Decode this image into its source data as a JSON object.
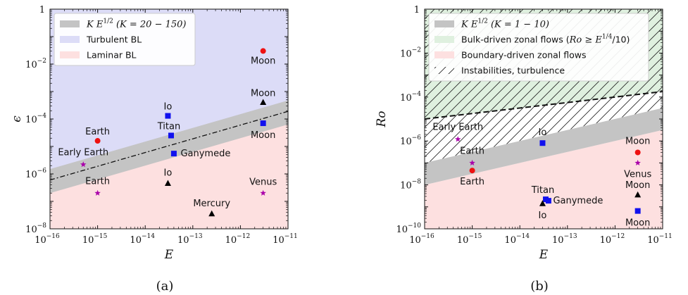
{
  "chart_data": [
    {
      "type": "scatter",
      "panel": "a",
      "caption": "(a)",
      "xlabel": "E",
      "ylabel": "ϵ",
      "x_scale": "log",
      "y_scale": "log",
      "xlim": [
        1e-16,
        1e-11
      ],
      "ylim": [
        1e-08,
        1
      ],
      "x_ticks": [
        {
          "b": "10",
          "e": "−16"
        },
        {
          "b": "10",
          "e": "−15"
        },
        {
          "b": "10",
          "e": "−14"
        },
        {
          "b": "10",
          "e": "−13"
        },
        {
          "b": "10",
          "e": "−12"
        },
        {
          "b": "10",
          "e": "−11"
        }
      ],
      "y_ticks": [
        {
          "b": "10",
          "e": "−8",
          "v": 1e-08
        },
        {
          "b": "10",
          "e": "−6",
          "v": 1e-06
        },
        {
          "b": "10",
          "e": "−4",
          "v": 0.0001
        },
        {
          "b": "10",
          "e": "−2",
          "v": 0.01
        },
        {
          "b": "1",
          "e": "",
          "v": 1
        }
      ],
      "legend_position": "top-left",
      "legend": [
        {
          "kind": "gray",
          "math": "K E",
          "sup": "1/2",
          "rest": " (K = 20 − 150)"
        },
        {
          "kind": "blue",
          "text": "Turbulent BL"
        },
        {
          "kind": "pink",
          "text": "Laminar BL"
        }
      ],
      "band": {
        "k_low": 20,
        "k_high": 150,
        "exponent": 0.5
      },
      "regions": {
        "upper_color": "#dcdcf7",
        "lower_color": "#fde0e0"
      },
      "dash_dot_line": {
        "k": 60,
        "exponent": 0.5
      },
      "points": [
        {
          "label": "Moon",
          "x": 3e-12,
          "y": 0.03,
          "marker": "circle",
          "color": "#ee1111",
          "lx": 0,
          "ly": 18
        },
        {
          "label": "Moon",
          "x": 3e-12,
          "y": 0.0004,
          "marker": "triangle",
          "color": "#000000",
          "lx": 0,
          "ly": -9
        },
        {
          "label": "Moon",
          "x": 3e-12,
          "y": 7e-05,
          "marker": "square",
          "color": "#1111ee",
          "lx": 0,
          "ly": 21
        },
        {
          "label": "Io",
          "x": 3e-14,
          "y": 0.00013,
          "marker": "square",
          "color": "#1111ee",
          "lx": 0,
          "ly": -9
        },
        {
          "label": "Titan",
          "x": 3.5e-14,
          "y": 2.5e-05,
          "marker": "square",
          "color": "#1111ee",
          "lx": -3,
          "ly": -9
        },
        {
          "label": "Ganymede",
          "x": 4e-14,
          "y": 5.5e-06,
          "marker": "square",
          "color": "#1111ee",
          "lx": 45,
          "ly": 4
        },
        {
          "label": "Earth",
          "x": 1e-15,
          "y": 1.6e-05,
          "marker": "circle",
          "color": "#ee1111",
          "lx": 0,
          "ly": -9
        },
        {
          "label": "Early Earth",
          "x": 5e-16,
          "y": 2.2e-06,
          "marker": "star",
          "color": "#aa00aa",
          "lx": 0,
          "ly": -13
        },
        {
          "label": "Earth",
          "x": 1e-15,
          "y": 2e-07,
          "marker": "star",
          "color": "#aa00aa",
          "lx": 0,
          "ly": -13
        },
        {
          "label": "Io",
          "x": 3e-14,
          "y": 4.5e-07,
          "marker": "triangle",
          "color": "#000000",
          "lx": 0,
          "ly": -11
        },
        {
          "label": "Venus",
          "x": 3e-12,
          "y": 2e-07,
          "marker": "star",
          "color": "#aa00aa",
          "lx": 0,
          "ly": -12
        },
        {
          "label": "Mercury",
          "x": 2.5e-13,
          "y": 3.5e-08,
          "marker": "triangle",
          "color": "#000000",
          "lx": 0,
          "ly": -11
        }
      ]
    },
    {
      "type": "scatter",
      "panel": "b",
      "caption": "(b)",
      "xlabel": "E",
      "ylabel": "Ro",
      "x_scale": "log",
      "y_scale": "log",
      "xlim": [
        1e-16,
        1e-11
      ],
      "ylim": [
        1e-10,
        1
      ],
      "x_ticks": [
        {
          "b": "10",
          "e": "−16"
        },
        {
          "b": "10",
          "e": "−15"
        },
        {
          "b": "10",
          "e": "−14"
        },
        {
          "b": "10",
          "e": "−13"
        },
        {
          "b": "10",
          "e": "−12"
        },
        {
          "b": "10",
          "e": "−11"
        }
      ],
      "y_ticks": [
        {
          "b": "10",
          "e": "−10",
          "v": 1e-10
        },
        {
          "b": "10",
          "e": "−8",
          "v": 1e-08
        },
        {
          "b": "10",
          "e": "−6",
          "v": 1e-06
        },
        {
          "b": "10",
          "e": "−4",
          "v": 0.0001
        },
        {
          "b": "10",
          "e": "−2",
          "v": 0.01
        },
        {
          "b": "1",
          "e": "",
          "v": 1
        }
      ],
      "legend_position": "top-left",
      "legend": [
        {
          "kind": "gray",
          "math": "K E",
          "sup": "1/2",
          "rest": " (K = 1 − 10)"
        },
        {
          "kind": "green",
          "text": "Bulk-driven zonal flows (",
          "math2": "Ro ≥ E",
          "sup2": "1/4",
          "rest2": "/10)"
        },
        {
          "kind": "pink",
          "text": "Boundary-driven zonal flows"
        },
        {
          "kind": "hatch",
          "text": "Instabilities, turbulence"
        }
      ],
      "band": {
        "k_low": 1,
        "k_high": 10,
        "exponent": 0.5
      },
      "dashed_line": {
        "k": 0.1,
        "exponent": 0.25
      },
      "regions": {
        "upper_color": "#dff0df",
        "lower_color": "#fde0e0"
      },
      "points": [
        {
          "label": "Early Earth",
          "x": 5e-16,
          "y": 1.2e-06,
          "marker": "star",
          "color": "#aa00aa",
          "lx": 0,
          "ly": -13
        },
        {
          "label": "Earth",
          "x": 1e-15,
          "y": 1e-07,
          "marker": "star",
          "color": "#aa00aa",
          "lx": 0,
          "ly": -13
        },
        {
          "label": "Earth",
          "x": 1e-15,
          "y": 4.5e-08,
          "marker": "circle",
          "color": "#ee1111",
          "lx": 0,
          "ly": 20
        },
        {
          "label": "Io",
          "x": 3e-14,
          "y": 8e-07,
          "marker": "square",
          "color": "#1111ee",
          "lx": 0,
          "ly": -11
        },
        {
          "label": "Titan",
          "x": 3.5e-14,
          "y": 2.2e-09,
          "marker": "square",
          "color": "#1111ee",
          "lx": -4,
          "ly": -9
        },
        {
          "label": "Ganymede",
          "x": 4e-14,
          "y": 1.9e-09,
          "marker": "square",
          "color": "#1111ee",
          "lx": 42,
          "ly": 4
        },
        {
          "label": "Io",
          "x": 3e-14,
          "y": 1.4e-09,
          "marker": "triangle",
          "color": "#000000",
          "lx": 0,
          "ly": 21
        },
        {
          "label": "Moon",
          "x": 3e-12,
          "y": 3e-07,
          "marker": "circle",
          "color": "#ee1111",
          "lx": 0,
          "ly": -12
        },
        {
          "label": "Venus",
          "x": 3e-12,
          "y": 1e-07,
          "marker": "star",
          "color": "#aa00aa",
          "lx": 0,
          "ly": 20
        },
        {
          "label": "Moon",
          "x": 3e-12,
          "y": 3.5e-09,
          "marker": "triangle",
          "color": "#000000",
          "lx": 0,
          "ly": -10
        },
        {
          "label": "Moon",
          "x": 3e-12,
          "y": 6.5e-10,
          "marker": "square",
          "color": "#1111ee",
          "lx": 0,
          "ly": 21
        }
      ]
    }
  ]
}
